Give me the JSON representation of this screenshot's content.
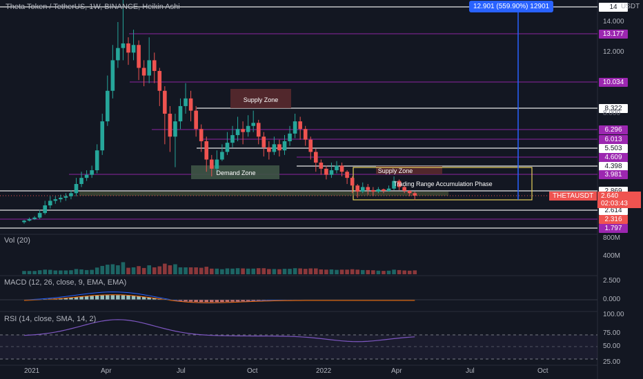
{
  "title": "Theta Token / TetherUS, 1W, BINANCE, Heikin Ashi",
  "axis_currency": "USDT",
  "measure_label": "12.901 (559.90%) 12901",
  "symbol_tag": "THETAUSDT",
  "last_price": "2.640",
  "countdown": "02:03:43",
  "price_axis_ticks": [
    "14.000",
    "12.000",
    "8.000"
  ],
  "price_labels": [
    {
      "text": "14",
      "kind": "white"
    },
    {
      "text": "13.177",
      "kind": "purple"
    },
    {
      "text": "10.034",
      "kind": "purple"
    },
    {
      "text": "8.322",
      "kind": "white"
    },
    {
      "text": "6.296",
      "kind": "purple"
    },
    {
      "text": "6.013",
      "kind": "purple"
    },
    {
      "text": "5.503",
      "kind": "white"
    },
    {
      "text": "4.609",
      "kind": "purple"
    },
    {
      "text": "4.398",
      "kind": "white"
    },
    {
      "text": "3.981",
      "kind": "purple"
    },
    {
      "text": "2.869",
      "kind": "white"
    },
    {
      "text": "2.614",
      "kind": "white"
    },
    {
      "text": "2.316",
      "kind": "red"
    },
    {
      "text": "1.797",
      "kind": "purple"
    }
  ],
  "annotations": {
    "supply_zone_1": "Supply Zone",
    "supply_zone_2": "Supply Zone",
    "demand_zone": "Demand Zone",
    "trading_range": "Trading Range Accumulation Phase"
  },
  "volume": {
    "label": "Vol (20)",
    "ticks": [
      "800M",
      "400M"
    ]
  },
  "macd": {
    "label": "MACD (12, 26, close, 9, EMA, EMA)",
    "ticks": [
      "2.500",
      "0.000"
    ]
  },
  "rsi": {
    "label": "RSI (14, close, SMA, 14, 2)",
    "ticks": [
      "100.00",
      "75.00",
      "50.00",
      "25.00"
    ]
  },
  "time_axis": [
    "2021",
    "Apr",
    "Jul",
    "Oct",
    "2022",
    "Apr",
    "Jul",
    "Oct"
  ],
  "colors": {
    "bg": "#131722",
    "up": "#26a69a",
    "down": "#ef5350",
    "purple": "#9c27b0",
    "accent": "#2962ff"
  },
  "chart_data": {
    "type": "candlestick",
    "title": "Theta Token / TetherUS, 1W, BINANCE, Heikin Ashi",
    "candles": [
      [
        0.9,
        1.0,
        0.8,
        1.05
      ],
      [
        1.0,
        1.1,
        0.95,
        1.2
      ],
      [
        1.1,
        1.2,
        1.05,
        1.3
      ],
      [
        1.2,
        1.5,
        1.1,
        1.7
      ],
      [
        1.5,
        2.0,
        1.4,
        2.3
      ],
      [
        2.0,
        2.3,
        1.8,
        2.6
      ],
      [
        2.3,
        2.4,
        2.1,
        2.6
      ],
      [
        2.4,
        2.5,
        2.2,
        2.7
      ],
      [
        2.5,
        2.6,
        2.3,
        2.8
      ],
      [
        2.6,
        2.8,
        2.4,
        3.0
      ],
      [
        2.8,
        3.4,
        2.6,
        3.8
      ],
      [
        3.4,
        3.8,
        3.2,
        4.2
      ],
      [
        3.8,
        4.0,
        3.6,
        4.3
      ],
      [
        4.0,
        4.3,
        3.8,
        4.6
      ],
      [
        4.3,
        5.6,
        4.1,
        6.0
      ],
      [
        5.6,
        7.5,
        5.3,
        8.0
      ],
      [
        7.5,
        9.5,
        7.2,
        10.5
      ],
      [
        9.5,
        11.5,
        9.0,
        12.5
      ],
      [
        11.5,
        12.3,
        11.0,
        14.0
      ],
      [
        12.3,
        12.6,
        11.5,
        16.0
      ],
      [
        12.6,
        12.0,
        11.2,
        13.0
      ],
      [
        12.0,
        12.5,
        11.5,
        13.5
      ],
      [
        12.5,
        11.0,
        10.2,
        12.8
      ],
      [
        11.0,
        10.5,
        9.8,
        11.5
      ],
      [
        10.5,
        11.5,
        10.0,
        13.0
      ],
      [
        11.5,
        10.8,
        10.0,
        12.0
      ],
      [
        10.8,
        9.5,
        8.5,
        11.0
      ],
      [
        9.5,
        8.0,
        6.0,
        9.8
      ],
      [
        8.0,
        6.5,
        5.5,
        8.5
      ],
      [
        6.5,
        7.5,
        4.5,
        8.0
      ],
      [
        7.5,
        8.5,
        7.0,
        9.0
      ],
      [
        8.5,
        9.0,
        8.0,
        10.0
      ],
      [
        9.0,
        8.2,
        7.5,
        9.5
      ],
      [
        8.2,
        7.0,
        6.5,
        8.5
      ],
      [
        7.0,
        6.2,
        5.5,
        7.3
      ],
      [
        6.2,
        5.0,
        4.2,
        6.5
      ],
      [
        5.0,
        4.4,
        3.9,
        5.3
      ],
      [
        4.4,
        5.0,
        4.2,
        5.6
      ],
      [
        5.0,
        5.5,
        4.9,
        6.0
      ],
      [
        5.5,
        6.1,
        5.3,
        6.8
      ],
      [
        6.1,
        6.6,
        5.8,
        7.2
      ],
      [
        6.6,
        7.0,
        6.2,
        7.8
      ],
      [
        7.0,
        6.8,
        6.0,
        7.5
      ],
      [
        6.8,
        7.2,
        6.5,
        7.9
      ],
      [
        7.2,
        7.4,
        6.8,
        8.2
      ],
      [
        7.4,
        6.5,
        6.0,
        7.6
      ],
      [
        6.5,
        5.8,
        5.2,
        6.8
      ],
      [
        5.8,
        5.5,
        5.0,
        6.2
      ],
      [
        5.5,
        6.0,
        5.3,
        6.5
      ],
      [
        6.0,
        5.6,
        5.2,
        6.3
      ],
      [
        5.6,
        6.2,
        5.3,
        6.6
      ],
      [
        6.2,
        6.7,
        5.9,
        7.2
      ],
      [
        6.7,
        7.5,
        6.4,
        8.0
      ],
      [
        7.5,
        7.0,
        6.3,
        7.8
      ],
      [
        7.0,
        6.3,
        5.9,
        7.2
      ],
      [
        6.3,
        5.5,
        5.0,
        6.5
      ],
      [
        5.5,
        4.8,
        4.2,
        5.7
      ],
      [
        4.8,
        4.4,
        4.0,
        5.0
      ],
      [
        4.4,
        4.0,
        3.7,
        4.6
      ],
      [
        4.0,
        4.3,
        3.8,
        4.8
      ],
      [
        4.3,
        4.6,
        4.1,
        4.9
      ],
      [
        4.6,
        4.2,
        3.9,
        4.8
      ],
      [
        4.2,
        3.8,
        3.4,
        4.3
      ],
      [
        3.8,
        3.3,
        2.8,
        3.9
      ],
      [
        3.3,
        2.9,
        2.5,
        3.4
      ],
      [
        2.9,
        3.2,
        2.8,
        3.5
      ],
      [
        3.2,
        3.0,
        2.7,
        3.4
      ],
      [
        3.0,
        2.9,
        2.6,
        3.2
      ],
      [
        2.9,
        3.05,
        2.8,
        3.2
      ],
      [
        3.05,
        2.95,
        2.8,
        3.1
      ],
      [
        2.95,
        3.1,
        2.9,
        3.3
      ],
      [
        3.1,
        3.6,
        3.0,
        3.9
      ],
      [
        3.6,
        3.2,
        3.0,
        3.7
      ],
      [
        3.2,
        2.95,
        2.8,
        3.3
      ],
      [
        2.95,
        2.8,
        2.6,
        3.0
      ],
      [
        2.8,
        2.64,
        2.35,
        2.9
      ]
    ]
  }
}
